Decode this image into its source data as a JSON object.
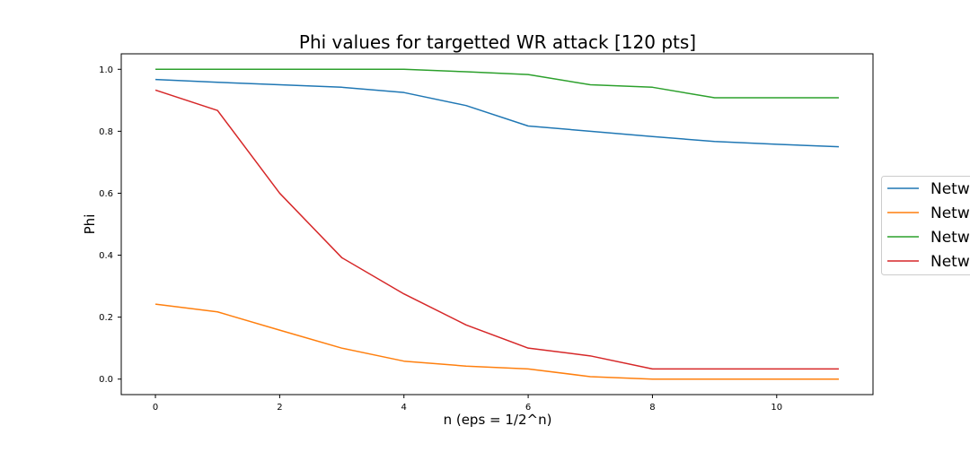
{
  "chart_data": {
    "type": "line",
    "title": "Phi values for targetted WR attack [120 pts]",
    "xlabel": "n (eps = 1/2^n)",
    "ylabel": "Phi",
    "xlim": [
      -0.55,
      11.55
    ],
    "ylim": [
      -0.05,
      1.05
    ],
    "x_ticks": [
      0,
      2,
      4,
      6,
      8,
      10
    ],
    "x_tick_labels": [
      "0",
      "2",
      "4",
      "6",
      "8",
      "10"
    ],
    "y_ticks": [
      0.0,
      0.2,
      0.4,
      0.6,
      0.8,
      1.0
    ],
    "y_tick_labels": [
      "0.0",
      "0.2",
      "0.4",
      "0.6",
      "0.8",
      "1.0"
    ],
    "grid": false,
    "legend_position": "right, outside plot (clipped)",
    "x": [
      0,
      1,
      2,
      3,
      4,
      5,
      6,
      7,
      8,
      9,
      10,
      11
    ],
    "series": [
      {
        "name": "Netw",
        "color": "#1f77b4",
        "values": [
          0.967,
          0.958,
          0.95,
          0.942,
          0.925,
          0.883,
          0.817,
          0.8,
          0.783,
          0.767,
          0.758,
          0.75
        ]
      },
      {
        "name": "Netw",
        "color": "#ff7f0e",
        "values": [
          0.242,
          0.217,
          0.158,
          0.1,
          0.058,
          0.042,
          0.033,
          0.008,
          0.0,
          0.0,
          0.0,
          0.0
        ]
      },
      {
        "name": "Netw",
        "color": "#2ca02c",
        "values": [
          1.0,
          1.0,
          1.0,
          1.0,
          1.0,
          0.992,
          0.983,
          0.95,
          0.942,
          0.908,
          0.908,
          0.908
        ]
      },
      {
        "name": "Netw",
        "color": "#d62728",
        "values": [
          0.933,
          0.867,
          0.6,
          0.392,
          0.275,
          0.175,
          0.1,
          0.075,
          0.033,
          0.033,
          0.033,
          0.033
        ]
      }
    ]
  }
}
